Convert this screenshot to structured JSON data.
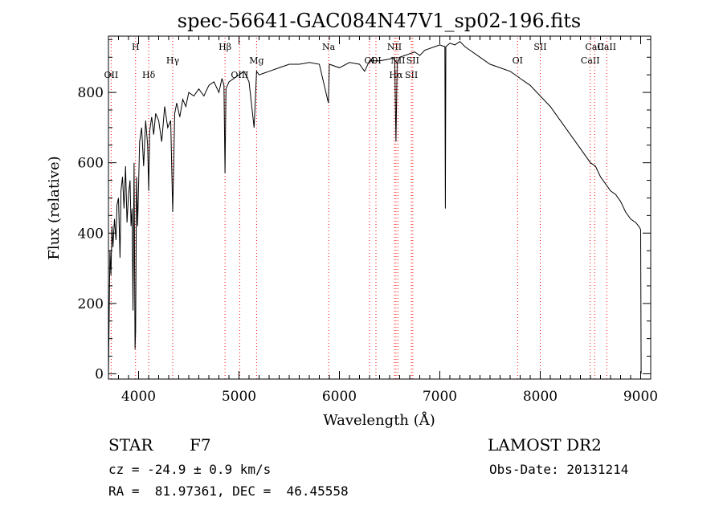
{
  "chart_data": {
    "type": "line",
    "title": "spec-56641-GAC084N47V1_sp02-196.fits",
    "xlabel": "Wavelength (Å)",
    "ylabel": "Flux (relative)",
    "xlim": [
      3700,
      9100
    ],
    "ylim": [
      -15,
      960
    ],
    "xticks": [
      4000,
      5000,
      6000,
      7000,
      8000,
      9000
    ],
    "yticks": [
      0,
      200,
      400,
      600,
      800
    ],
    "grid": false,
    "line_color": "#000000",
    "marker_color": "#ff0000",
    "series": [
      {
        "x": [
          3700,
          3715,
          3725,
          3735,
          3745,
          3760,
          3775,
          3785,
          3800,
          3815,
          3825,
          3840,
          3855,
          3870,
          3885,
          3900,
          3915,
          3925,
          3935,
          3945,
          3955,
          3965,
          3970,
          3980,
          3990,
          4010,
          4030,
          4050,
          4070,
          4090,
          4101,
          4110,
          4130,
          4150,
          4170,
          4200,
          4230,
          4260,
          4290,
          4320,
          4340,
          4360,
          4380,
          4410,
          4440,
          4470,
          4500,
          4550,
          4600,
          4650,
          4700,
          4750,
          4800,
          4830,
          4850,
          4861,
          4870,
          4900,
          4950,
          5000,
          5050,
          5100,
          5150,
          5175,
          5200,
          5250,
          5300,
          5400,
          5500,
          5600,
          5700,
          5800,
          5890,
          5900,
          6000,
          6100,
          6200,
          6250,
          6300,
          6400,
          6500,
          6550,
          6563,
          6575,
          6600,
          6650,
          6700,
          6750,
          6800,
          6850,
          6900,
          6950,
          7000,
          7050,
          7055,
          7060,
          7100,
          7150,
          7200,
          7250,
          7300,
          7400,
          7500,
          7600,
          7700,
          7800,
          7900,
          8000,
          8100,
          8200,
          8300,
          8400,
          8500,
          8550,
          8600,
          8650,
          8700,
          8750,
          8800,
          8850,
          8900,
          8950,
          8980,
          9000,
          9005
        ],
        "y": [
          0,
          350,
          280,
          420,
          360,
          440,
          380,
          480,
          500,
          330,
          520,
          560,
          470,
          590,
          430,
          510,
          550,
          420,
          470,
          180,
          600,
          70,
          120,
          560,
          420,
          660,
          700,
          590,
          720,
          650,
          520,
          690,
          730,
          680,
          740,
          720,
          660,
          760,
          700,
          720,
          460,
          740,
          770,
          730,
          780,
          760,
          800,
          790,
          810,
          790,
          820,
          830,
          800,
          840,
          820,
          570,
          810,
          830,
          840,
          850,
          860,
          830,
          700,
          860,
          850,
          855,
          860,
          870,
          880,
          880,
          885,
          880,
          770,
          880,
          870,
          885,
          880,
          860,
          890,
          890,
          895,
          900,
          660,
          880,
          900,
          905,
          910,
          915,
          905,
          920,
          925,
          930,
          935,
          930,
          470,
          930,
          940,
          935,
          945,
          930,
          920,
          900,
          880,
          870,
          860,
          840,
          820,
          790,
          760,
          720,
          680,
          640,
          600,
          590,
          560,
          540,
          520,
          510,
          490,
          460,
          440,
          430,
          420,
          410,
          0
        ]
      }
    ],
    "lines": [
      {
        "name": "OII",
        "x": 3727,
        "label_level": 3
      },
      {
        "name": "H",
        "x": 3970,
        "label_level": 1
      },
      {
        "name": "Hδ",
        "x": 4101,
        "label_level": 3
      },
      {
        "name": "Hγ",
        "x": 4340,
        "label_level": 2
      },
      {
        "name": "Hβ",
        "x": 4861,
        "label_level": 1
      },
      {
        "name": "OIII",
        "x": 5007,
        "label_level": 3
      },
      {
        "name": "Mg",
        "x": 5175,
        "label_level": 2
      },
      {
        "name": "Na",
        "x": 5893,
        "label_level": 1
      },
      {
        "name": "OI",
        "x": 6300,
        "label_level": 2
      },
      {
        "name": "OI",
        "x": 6364,
        "label_level": 2
      },
      {
        "name": "NII",
        "x": 6548,
        "label_level": 1
      },
      {
        "name": "Hα",
        "x": 6563,
        "label_level": 3
      },
      {
        "name": "NII",
        "x": 6583,
        "label_level": 2
      },
      {
        "name": "SII",
        "x": 6717,
        "label_level": 3
      },
      {
        "name": "SII",
        "x": 6731,
        "label_level": 2
      },
      {
        "name": "OI",
        "x": 7774,
        "label_level": 2
      },
      {
        "name": "SII",
        "x": 8000,
        "label_level": 1
      },
      {
        "name": "CaII",
        "x": 8498,
        "label_level": 2
      },
      {
        "name": "CaII",
        "x": 8542,
        "label_level": 1
      },
      {
        "name": "CaII",
        "x": 8662,
        "label_level": 1
      }
    ]
  },
  "info": {
    "class_label": "STAR",
    "subclass": "F7",
    "survey": "LAMOST DR2",
    "cz": "cz = -24.9 ± 0.9 km/s",
    "obs_date": "Obs-Date: 20131214",
    "coords": "RA =  81.97361, DEC =  46.45558"
  }
}
